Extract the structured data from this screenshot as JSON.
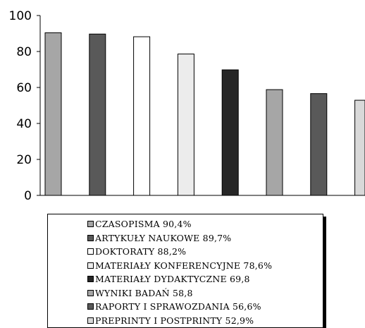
{
  "chart_data": {
    "type": "bar",
    "categories": [
      "CZASOPISMA 90,4%",
      "ARTYKUŁY NAUKOWE 89,7%",
      "DOKTORATY 88,2%",
      "MATERIAŁY KONFERENCYJNE 78,6%",
      "MATERIAŁY DYDAKTYCZNE 69,8",
      "WYNIKI BADAŃ 58,8",
      "RAPORTY I SPRAWOZDANIA 56,6%",
      "PREPRINTY I POSTPRINTY 52,9%"
    ],
    "values": [
      90.4,
      89.7,
      88.2,
      78.6,
      69.8,
      58.8,
      56.6,
      52.9
    ],
    "colors": [
      "#a6a6a6",
      "#595959",
      "#ffffff",
      "#ececec",
      "#262626",
      "#a6a6a6",
      "#595959",
      "#d9d9d9"
    ],
    "ylim": [
      0,
      100
    ],
    "yticks": [
      "0",
      "20",
      "40",
      "60",
      "80",
      "100"
    ],
    "grid": false,
    "legend_position": "bottom"
  }
}
